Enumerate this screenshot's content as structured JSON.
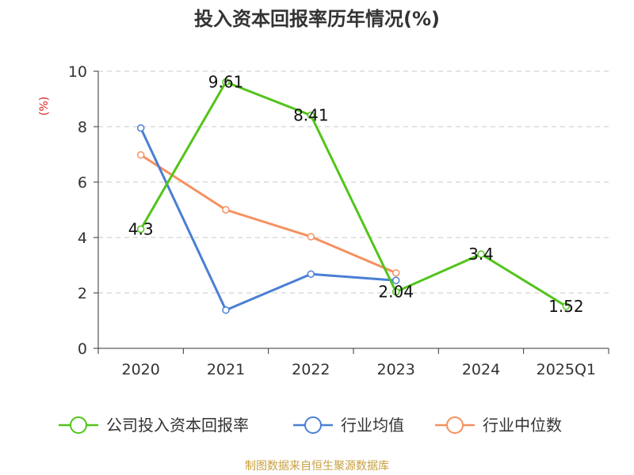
{
  "chart_data": {
    "type": "line",
    "title": "投入资本回报率历年情况(%)",
    "ylabel": "(%)",
    "categories": [
      "2020",
      "2021",
      "2022",
      "2023",
      "2024",
      "2025Q1"
    ],
    "ylim": [
      0,
      10
    ],
    "yticks": [
      "0",
      "2",
      "4",
      "6",
      "8",
      "10"
    ],
    "grid": true,
    "legend_position": "bottom",
    "series": [
      {
        "name": "公司投入资本回报率",
        "color": "#52c41a",
        "values": [
          4.3,
          9.61,
          8.41,
          2.04,
          3.4,
          1.52
        ],
        "labels": [
          "4.3",
          "9.61",
          "8.41",
          "2.04",
          "3.4",
          "1.52"
        ]
      },
      {
        "name": "行业均值",
        "color": "#4a7fd4",
        "values": [
          7.95,
          1.38,
          2.68,
          2.45,
          null,
          null
        ]
      },
      {
        "name": "行业中位数",
        "color": "#f59060",
        "values": [
          6.98,
          5.0,
          4.03,
          2.72,
          null,
          null
        ]
      }
    ]
  },
  "source_text": "制图数据来自恒生聚源数据库"
}
